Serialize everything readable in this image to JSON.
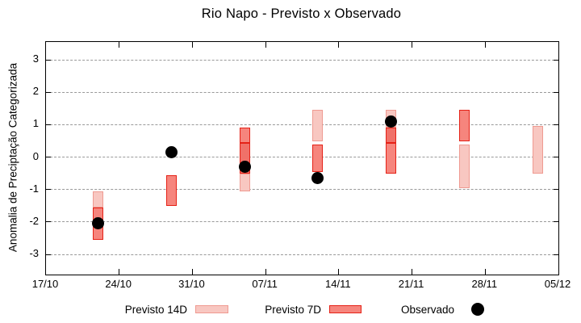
{
  "chart_data": {
    "type": "bar",
    "subtype": "forecast-range-candlesticks-with-observed-points",
    "title": "Rio Napo - Previsto x Observado",
    "xlabel": "",
    "ylabel": "Anomalia de Preciptação Categorizada",
    "ylim": [
      -3.62,
      3.55
    ],
    "yticks": [
      3,
      2,
      1,
      0,
      -1,
      -2,
      -3
    ],
    "ytick_labels": [
      "3",
      "2",
      "1",
      "0",
      "-1",
      "-2",
      "-3"
    ],
    "x_range_days": [
      0,
      49
    ],
    "xticks_days": [
      0,
      7,
      14,
      21,
      28,
      35,
      42,
      49
    ],
    "xtick_labels": [
      "17/10",
      "24/10",
      "31/10",
      "07/11",
      "14/11",
      "21/11",
      "28/11",
      "05/12"
    ],
    "grid": "horizontal-dashed",
    "legend_position": "bottom-outside",
    "legend": [
      {
        "label": "Previsto 14D",
        "kind": "14d"
      },
      {
        "label": "Previsto 7D",
        "kind": "7d"
      },
      {
        "label": "Observado",
        "kind": "observed"
      }
    ],
    "colors": {
      "14d_fill": "#f8c7c1",
      "14d_stroke": "#ef9a91",
      "7d_fill": "#f6857d",
      "7d_stroke": "#e52217",
      "overlap_fill": "#f07169",
      "overlap_stroke": "#e52217",
      "observed": "#000000",
      "grid": "#999999",
      "axis": "#000000"
    },
    "clusters": [
      {
        "date": "22/10",
        "day": 5,
        "segments": [
          {
            "kind": "14d",
            "hi": -1.05,
            "lo": -1.55
          },
          {
            "kind": "7d",
            "hi": -1.55,
            "lo": -2.55
          }
        ],
        "observed": -2.05
      },
      {
        "date": "29/10",
        "day": 12,
        "segments": [
          {
            "kind": "7d",
            "hi": -0.55,
            "lo": -1.5
          }
        ],
        "observed": 0.15
      },
      {
        "date": "05/11",
        "day": 19,
        "segments": [
          {
            "kind": "7d",
            "hi": 0.9,
            "lo": 0.45
          },
          {
            "kind": "overlap",
            "hi": 0.45,
            "lo": -0.5
          },
          {
            "kind": "14d",
            "hi": -0.5,
            "lo": -1.05
          }
        ],
        "observed": -0.3
      },
      {
        "date": "12/11",
        "day": 26,
        "segments": [
          {
            "kind": "14d",
            "hi": 1.45,
            "lo": 0.5
          },
          {
            "kind": "7d",
            "hi": 0.4,
            "lo": -0.45
          }
        ],
        "observed": -0.65
      },
      {
        "date": "19/11",
        "day": 33,
        "segments": [
          {
            "kind": "14d",
            "hi": 1.45,
            "lo": 0.9
          },
          {
            "kind": "overlap",
            "hi": 0.9,
            "lo": 0.45
          },
          {
            "kind": "7d",
            "hi": 0.45,
            "lo": -0.5
          }
        ],
        "observed": 1.1
      },
      {
        "date": "26/11",
        "day": 40,
        "segments": [
          {
            "kind": "7d",
            "hi": 1.45,
            "lo": 0.5
          },
          {
            "kind": "14d",
            "hi": 0.4,
            "lo": -0.95
          }
        ],
        "observed": null
      },
      {
        "date": "03/12",
        "day": 47,
        "segments": [
          {
            "kind": "14d",
            "hi": 0.95,
            "lo": -0.5
          }
        ],
        "observed": null
      }
    ]
  }
}
